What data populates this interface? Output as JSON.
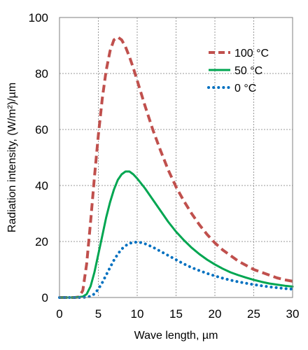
{
  "chart_data": {
    "type": "line",
    "xlabel": "Wave length, µm",
    "ylabel": "Radiation intensity, (W/m²)/µm",
    "xlim": [
      0,
      30
    ],
    "ylim": [
      0,
      100
    ],
    "x_ticks": [
      0,
      5,
      10,
      15,
      20,
      25,
      30
    ],
    "y_ticks": [
      0,
      20,
      40,
      60,
      80,
      100
    ],
    "grid": true,
    "legend_position": "top-right",
    "series": [
      {
        "name": "100 °C",
        "color": "#C0504D",
        "style": "dashed",
        "x": [
          0,
          1,
          2,
          2.5,
          3,
          3.5,
          4,
          4.5,
          5,
          5.5,
          6,
          6.5,
          7,
          7.5,
          8,
          8.5,
          9,
          9.5,
          10,
          11,
          12,
          13,
          14,
          15,
          16,
          17,
          18,
          19,
          20,
          21,
          22,
          23,
          24,
          25,
          26,
          27,
          28,
          29,
          30
        ],
        "values": [
          0,
          0,
          0,
          0.2,
          2.5,
          12,
          27,
          43,
          58,
          71,
          81,
          88,
          92,
          93,
          92,
          89.5,
          86,
          82,
          77.5,
          68.5,
          60,
          52.5,
          45.5,
          39.5,
          34.5,
          30,
          26,
          22.5,
          19.5,
          17,
          15,
          13,
          11.5,
          10,
          9,
          8,
          7,
          6.3,
          5.8
        ]
      },
      {
        "name": "50 °C",
        "color": "#00A651",
        "style": "solid",
        "x": [
          0,
          2,
          3,
          3.5,
          4,
          4.5,
          5,
          5.5,
          6,
          6.5,
          7,
          7.5,
          8,
          8.5,
          9,
          9.5,
          10,
          11,
          12,
          13,
          14,
          15,
          16,
          17,
          18,
          19,
          20,
          21,
          22,
          23,
          24,
          25,
          26,
          27,
          28,
          29,
          30
        ],
        "values": [
          0,
          0,
          0.3,
          1.2,
          4,
          9,
          15.5,
          22,
          28.5,
          34,
          38.5,
          42,
          44,
          45,
          45,
          44,
          42.5,
          39,
          35,
          31,
          27,
          23.5,
          20.5,
          17.8,
          15.5,
          13.5,
          11.8,
          10.3,
          9,
          8,
          7.1,
          6.3,
          5.6,
          5,
          4.6,
          4.2,
          3.9
        ]
      },
      {
        "name": "0 °C",
        "color": "#0070C0",
        "style": "dotted",
        "x": [
          0,
          3,
          4,
          4.5,
          5,
          5.5,
          6,
          6.5,
          7,
          7.5,
          8,
          8.5,
          9,
          9.5,
          10,
          10.5,
          11,
          12,
          13,
          14,
          15,
          16,
          17,
          18,
          19,
          20,
          21,
          22,
          23,
          24,
          25,
          26,
          27,
          28,
          29,
          30
        ],
        "values": [
          0,
          0,
          0.4,
          1.3,
          3,
          5.3,
          8,
          10.7,
          13.3,
          15.5,
          17.3,
          18.5,
          19.3,
          19.7,
          19.8,
          19.6,
          19.2,
          18,
          16.5,
          15,
          13.5,
          12,
          10.7,
          9.6,
          8.6,
          7.7,
          6.9,
          6.2,
          5.6,
          5.1,
          4.6,
          4.2,
          3.8,
          3.5,
          3.2,
          3
        ]
      }
    ]
  }
}
